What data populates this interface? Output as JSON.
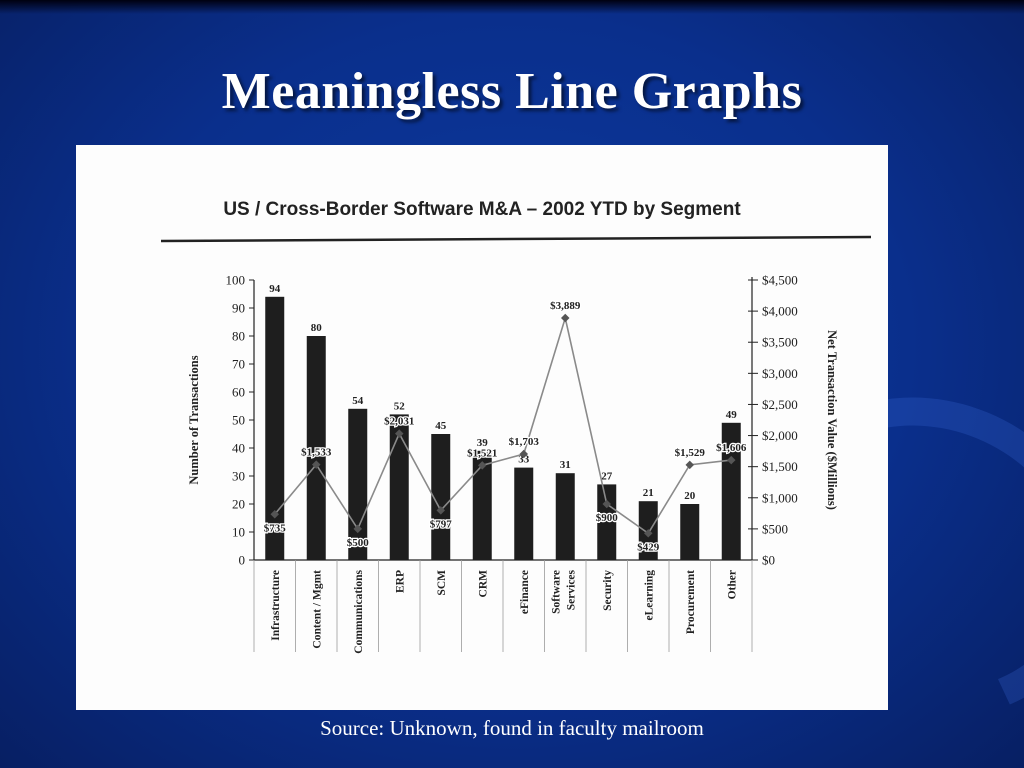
{
  "slide": {
    "title": "Meaningless Line Graphs",
    "source": "Source:  Unknown, found in faculty mailroom"
  },
  "chart_data": {
    "type": "bar",
    "title": "US / Cross-Border Software M&A – 2002 YTD by Segment",
    "ylabel": "Number of Transactions",
    "y2label": "Net Transaction Value ($Millions)",
    "ylim": [
      0,
      100
    ],
    "y2lim": [
      0,
      4500
    ],
    "yticks": [
      "0",
      "10",
      "20",
      "30",
      "40",
      "50",
      "60",
      "70",
      "80",
      "90",
      "100"
    ],
    "y2ticks": [
      "$0",
      "$500",
      "$1,000",
      "$1,500",
      "$2,000",
      "$2,500",
      "$3,000",
      "$3,500",
      "$4,000",
      "$4,500"
    ],
    "categories": [
      "Infrastructure",
      "Content / Mgmt",
      "Communications",
      "ERP",
      "SCM",
      "CRM",
      "eFinance",
      "Software Services",
      "Security",
      "eLearning",
      "Procurement",
      "Other"
    ],
    "series": [
      {
        "kind": "bar",
        "axis": "left",
        "values": [
          94,
          80,
          54,
          52,
          45,
          39,
          33,
          31,
          27,
          21,
          20,
          49
        ],
        "labels": [
          "94",
          "80",
          "54",
          "52",
          "45",
          "39",
          "33",
          "31",
          "27",
          "21",
          "20",
          "49"
        ]
      },
      {
        "kind": "line",
        "axis": "right",
        "values": [
          735,
          1533,
          500,
          2031,
          797,
          1521,
          1703,
          3889,
          900,
          429,
          1529,
          1606
        ],
        "labels": [
          "$735",
          "$1,533",
          "$500",
          "$2,031",
          "$797",
          "$1,521",
          "$1,703",
          "$3,889",
          "$900",
          "$429",
          "$1,529",
          "$1,606"
        ]
      }
    ],
    "legend": "none",
    "grid": false,
    "colors": {
      "bar": "#1e1e1e",
      "line": "#8a8a8a",
      "text": "#222222"
    }
  }
}
